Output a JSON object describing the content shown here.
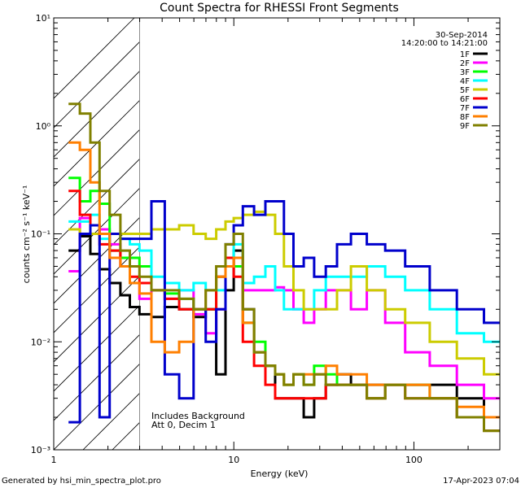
{
  "chart_data": {
    "type": "line",
    "title": "Count Spectra for RHESSI Front Segments",
    "xlabel": "Energy (keV)",
    "ylabel": "counts cm⁻² s⁻¹ keV⁻¹",
    "xscale": "log",
    "yscale": "log",
    "xlim": [
      1,
      300
    ],
    "ylim": [
      0.001,
      10
    ],
    "x_ticks": [
      {
        "value": 1,
        "label": "1"
      },
      {
        "value": 10,
        "label": "10"
      },
      {
        "value": 100,
        "label": "100"
      }
    ],
    "y_ticks": [
      {
        "value": 0.001,
        "label": "10⁻³"
      },
      {
        "value": 0.01,
        "label": "10⁻²"
      },
      {
        "value": 0.1,
        "label": "10⁻¹"
      },
      {
        "value": 1,
        "label": "10⁰"
      },
      {
        "value": 10,
        "label": "10¹"
      }
    ],
    "legend_position": "top-right",
    "date": "30-Sep-2014",
    "time_range": "14:20:00 to 14:21:00",
    "annotations": [
      "Includes Background",
      "Att 0, Decim 1"
    ],
    "hatched_region_xmax": 3,
    "series": [
      {
        "name": "1F",
        "color": "#000000",
        "x": [
          1.3,
          1.5,
          1.7,
          1.9,
          2.2,
          2.5,
          2.8,
          3.2,
          3.8,
          4.5,
          5.5,
          6.5,
          7.5,
          8.5,
          9.5,
          10.5,
          12,
          14,
          16,
          18,
          20,
          23,
          26,
          30,
          35,
          40,
          50,
          60,
          80,
          100,
          150,
          200,
          300
        ],
        "y": [
          0.07,
          0.095,
          0.065,
          0.047,
          0.035,
          0.027,
          0.021,
          0.018,
          0.017,
          0.021,
          0.02,
          0.017,
          0.02,
          0.005,
          0.03,
          0.07,
          0.02,
          0.008,
          0.006,
          0.003,
          0.003,
          0.003,
          0.002,
          0.003,
          0.004,
          0.005,
          0.004,
          0.004,
          0.004,
          0.004,
          0.004,
          0.003,
          0.002
        ]
      },
      {
        "name": "2F",
        "color": "#ff00ff",
        "x": [
          1.3,
          1.5,
          1.7,
          1.9,
          2.2,
          2.5,
          2.8,
          3.2,
          3.8,
          4.5,
          5.5,
          6.5,
          7.5,
          8.5,
          9.5,
          10.5,
          12,
          14,
          16,
          18,
          20,
          23,
          26,
          30,
          35,
          40,
          50,
          60,
          80,
          100,
          150,
          200,
          300
        ],
        "y": [
          0.045,
          0.14,
          0.12,
          0.11,
          0.08,
          0.05,
          0.035,
          0.025,
          0.03,
          0.025,
          0.03,
          0.018,
          0.012,
          0.02,
          0.05,
          0.06,
          0.03,
          0.03,
          0.03,
          0.032,
          0.03,
          0.02,
          0.015,
          0.02,
          0.03,
          0.03,
          0.02,
          0.03,
          0.015,
          0.008,
          0.006,
          0.004,
          0.003
        ]
      },
      {
        "name": "3F",
        "color": "#00ff00",
        "x": [
          1.3,
          1.5,
          1.7,
          1.9,
          2.2,
          2.5,
          2.8,
          3.2,
          3.8,
          4.5,
          5.5,
          6.5,
          7.5,
          8.5,
          9.5,
          10.5,
          12,
          14,
          16,
          18,
          20,
          23,
          26,
          30,
          35,
          40,
          50,
          60,
          80,
          100,
          150,
          200,
          300
        ],
        "y": [
          0.33,
          0.2,
          0.25,
          0.19,
          0.07,
          0.06,
          0.06,
          0.05,
          0.03,
          0.028,
          0.025,
          0.02,
          0.02,
          0.04,
          0.06,
          0.05,
          0.015,
          0.01,
          0.006,
          0.005,
          0.004,
          0.005,
          0.004,
          0.006,
          0.005,
          0.004,
          0.004,
          0.003,
          0.004,
          0.004,
          0.003,
          0.002,
          0.0015
        ]
      },
      {
        "name": "4F",
        "color": "#00ffff",
        "x": [
          1.3,
          1.5,
          1.7,
          1.9,
          2.2,
          2.5,
          2.8,
          3.2,
          3.8,
          4.5,
          5.5,
          6.5,
          7.5,
          8.5,
          9.5,
          10.5,
          12,
          14,
          16,
          18,
          20,
          23,
          26,
          30,
          35,
          40,
          50,
          60,
          80,
          100,
          150,
          200,
          300
        ],
        "y": [
          0.13,
          0.13,
          0.15,
          0.09,
          0.1,
          0.09,
          0.08,
          0.07,
          0.04,
          0.035,
          0.03,
          0.035,
          0.03,
          0.03,
          0.06,
          0.08,
          0.035,
          0.04,
          0.05,
          0.03,
          0.02,
          0.02,
          0.02,
          0.03,
          0.04,
          0.04,
          0.04,
          0.05,
          0.04,
          0.03,
          0.02,
          0.012,
          0.01
        ]
      },
      {
        "name": "5F",
        "color": "#cccc00",
        "x": [
          1.3,
          1.5,
          1.7,
          1.9,
          2.2,
          2.5,
          2.8,
          3.2,
          3.8,
          4.5,
          5.5,
          6.5,
          7.5,
          8.5,
          9.5,
          10.5,
          12,
          14,
          16,
          18,
          20,
          23,
          26,
          30,
          35,
          40,
          50,
          60,
          80,
          100,
          150,
          200,
          300
        ],
        "y": [
          0.11,
          0.1,
          0.1,
          0.1,
          0.1,
          0.1,
          0.1,
          0.1,
          0.11,
          0.11,
          0.12,
          0.1,
          0.09,
          0.11,
          0.13,
          0.14,
          0.15,
          0.16,
          0.15,
          0.1,
          0.05,
          0.03,
          0.02,
          0.02,
          0.02,
          0.03,
          0.05,
          0.03,
          0.02,
          0.015,
          0.01,
          0.007,
          0.005
        ]
      },
      {
        "name": "6F",
        "color": "#ff0000",
        "x": [
          1.3,
          1.5,
          1.7,
          1.9,
          2.2,
          2.5,
          2.8,
          3.2,
          3.8,
          4.5,
          5.5,
          6.5,
          7.5,
          8.5,
          9.5,
          10.5,
          12,
          14,
          16,
          18,
          20,
          23,
          26,
          30,
          35,
          40,
          50,
          60,
          80,
          100,
          150,
          200,
          300
        ],
        "y": [
          0.25,
          0.15,
          0.12,
          0.08,
          0.07,
          0.05,
          0.04,
          0.035,
          0.03,
          0.025,
          0.02,
          0.02,
          0.02,
          0.04,
          0.06,
          0.04,
          0.01,
          0.006,
          0.004,
          0.003,
          0.003,
          0.003,
          0.003,
          0.003,
          0.004,
          0.004,
          0.004,
          0.003,
          0.004,
          0.003,
          0.003,
          0.002,
          0.0015
        ]
      },
      {
        "name": "7F",
        "color": "#0000cc",
        "x": [
          1.3,
          1.5,
          1.7,
          1.9,
          2.2,
          2.5,
          2.8,
          3.2,
          3.8,
          4.5,
          5.5,
          6.5,
          7.5,
          8.5,
          9.5,
          10.5,
          12,
          14,
          16,
          18,
          20,
          23,
          26,
          30,
          35,
          40,
          50,
          60,
          80,
          100,
          150,
          200,
          300
        ],
        "y": [
          0.0018,
          0.1,
          0.12,
          0.002,
          0.1,
          0.09,
          0.09,
          0.09,
          0.2,
          0.005,
          0.003,
          0.02,
          0.01,
          0.02,
          0.08,
          0.12,
          0.18,
          0.15,
          0.2,
          0.2,
          0.1,
          0.05,
          0.06,
          0.04,
          0.05,
          0.08,
          0.1,
          0.08,
          0.07,
          0.05,
          0.03,
          0.02,
          0.015
        ]
      },
      {
        "name": "8F",
        "color": "#ff7f00",
        "x": [
          1.3,
          1.5,
          1.7,
          1.9,
          2.2,
          2.5,
          2.8,
          3.2,
          3.8,
          4.5,
          5.5,
          6.5,
          7.5,
          8.5,
          9.5,
          10.5,
          12,
          14,
          16,
          18,
          20,
          23,
          26,
          30,
          35,
          40,
          50,
          60,
          80,
          100,
          150,
          200,
          300
        ],
        "y": [
          0.7,
          0.6,
          0.3,
          0.1,
          0.06,
          0.05,
          0.035,
          0.028,
          0.01,
          0.008,
          0.01,
          0.02,
          0.03,
          0.04,
          0.05,
          0.06,
          0.015,
          0.008,
          0.006,
          0.005,
          0.004,
          0.005,
          0.005,
          0.005,
          0.006,
          0.005,
          0.005,
          0.004,
          0.004,
          0.004,
          0.003,
          0.0025,
          0.002
        ]
      },
      {
        "name": "9F",
        "color": "#808000",
        "x": [
          1.3,
          1.5,
          1.7,
          1.9,
          2.2,
          2.5,
          2.8,
          3.2,
          3.8,
          4.5,
          5.5,
          6.5,
          7.5,
          8.5,
          9.5,
          10.5,
          12,
          14,
          16,
          18,
          20,
          23,
          26,
          30,
          35,
          40,
          50,
          60,
          80,
          100,
          150,
          200,
          300
        ],
        "y": [
          1.6,
          1.3,
          0.7,
          0.25,
          0.15,
          0.07,
          0.05,
          0.04,
          0.03,
          0.03,
          0.025,
          0.02,
          0.03,
          0.05,
          0.08,
          0.1,
          0.02,
          0.008,
          0.006,
          0.005,
          0.004,
          0.005,
          0.004,
          0.005,
          0.004,
          0.004,
          0.004,
          0.003,
          0.004,
          0.003,
          0.003,
          0.002,
          0.0015
        ]
      }
    ]
  },
  "footer": {
    "generated_by": "Generated by hsi_min_spectra_plot.pro",
    "timestamp": "17-Apr-2023 07:04"
  }
}
